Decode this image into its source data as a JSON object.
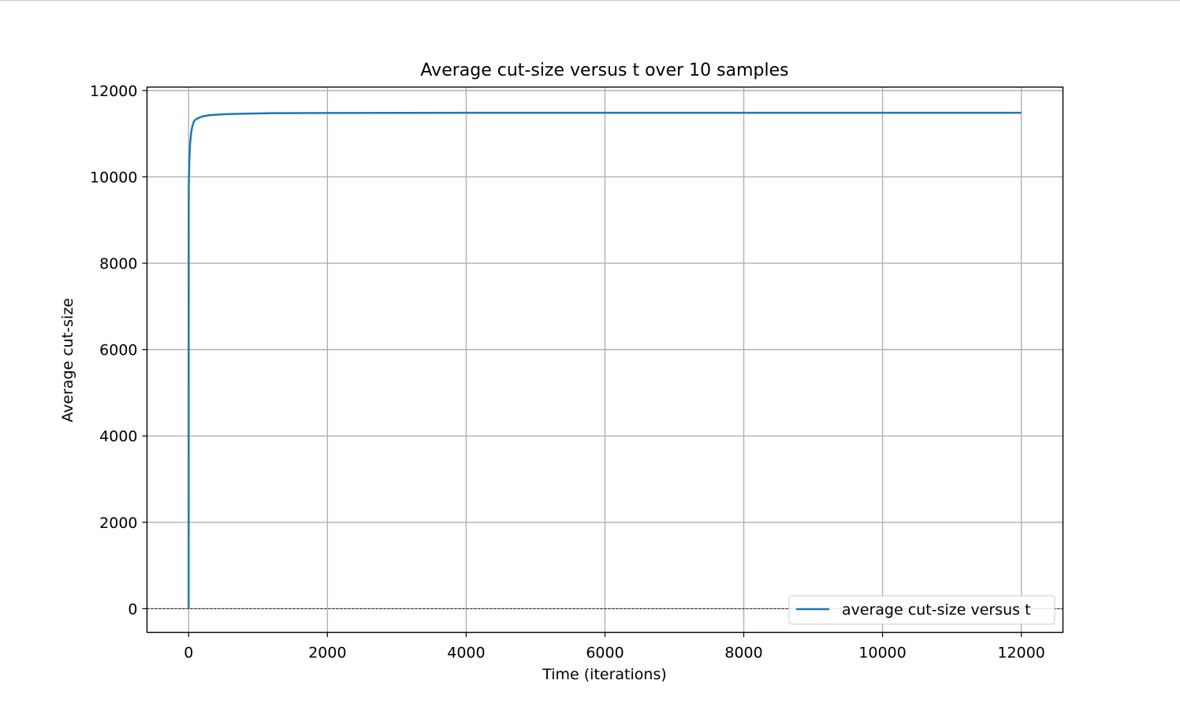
{
  "chart_data": {
    "type": "line",
    "title": "Average cut-size versus t over 10 samples",
    "xlabel": "Time (iterations)",
    "ylabel": "Average cut-size",
    "xlim": [
      -600,
      12600
    ],
    "ylim": [
      -550,
      12080
    ],
    "xticks": [
      0,
      2000,
      4000,
      6000,
      8000,
      10000,
      12000
    ],
    "yticks": [
      0,
      2000,
      4000,
      6000,
      8000,
      10000,
      12000
    ],
    "grid": true,
    "zero_line": {
      "y": 0,
      "style": "dashed",
      "color": "#000000"
    },
    "legend": {
      "position": "lower-right"
    },
    "series": [
      {
        "name": "average cut-size versus t",
        "color": "#1f77b4",
        "x": [
          0,
          1,
          2,
          5,
          10,
          20,
          35,
          50,
          75,
          100,
          150,
          200,
          300,
          500,
          800,
          1200,
          2000,
          4000,
          6000,
          8000,
          10000,
          12000
        ],
        "y": [
          0,
          9400,
          9800,
          10050,
          10400,
          10750,
          11000,
          11150,
          11280,
          11330,
          11370,
          11400,
          11430,
          11450,
          11465,
          11475,
          11480,
          11485,
          11485,
          11485,
          11485,
          11485
        ]
      }
    ]
  }
}
